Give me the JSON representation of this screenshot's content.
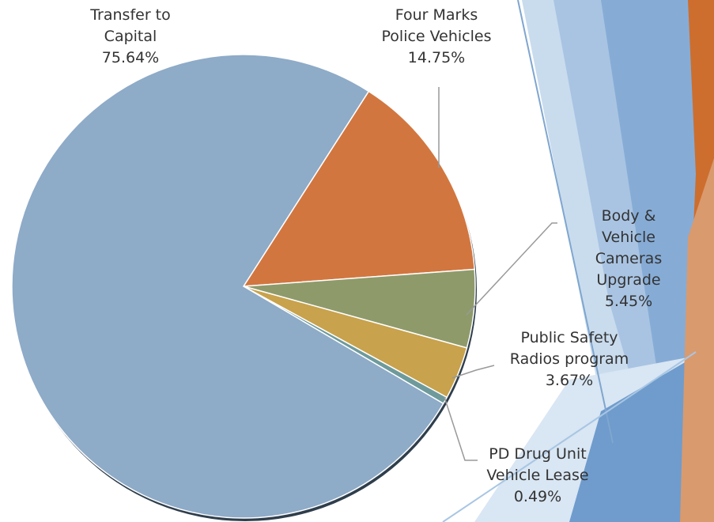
{
  "chart_data": {
    "type": "pie",
    "categories": [
      "Four Marks\nPolice Vehicles",
      "Body & Vehicle\nCameras\nUpgrade",
      "Public Safety\nRadios program",
      "PD Drug Unit\nVehicle Lease",
      "Transfer to\nCapital"
    ],
    "values": [
      14.75,
      5.45,
      3.67,
      0.49,
      75.64
    ],
    "value_labels": [
      "14.75%",
      "5.45%",
      "3.67%",
      "0.49%",
      "75.64%"
    ],
    "colors": [
      "#d2763f",
      "#8f9a6b",
      "#c8a24c",
      "#6e9a9c",
      "#8eabc8"
    ]
  }
}
